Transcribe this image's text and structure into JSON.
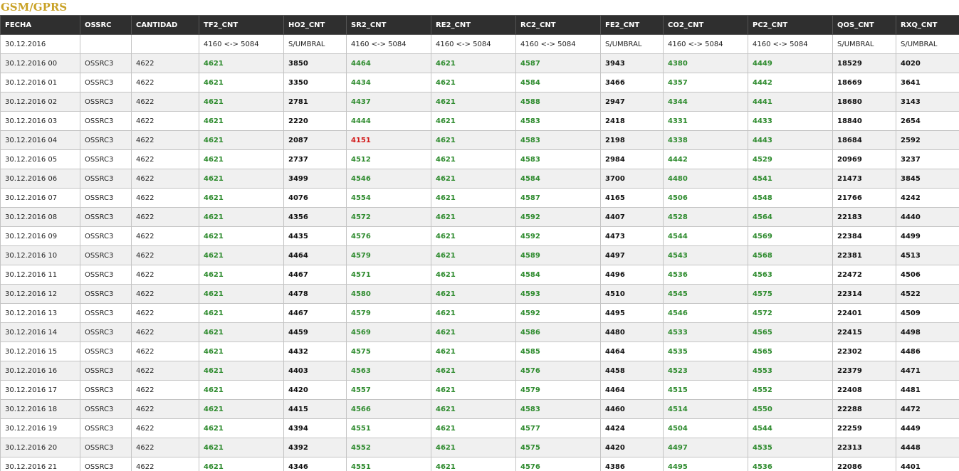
{
  "page": {
    "title": "GSM/GPRS"
  },
  "colors": {
    "title": "#c9a227",
    "header_bg": "#2f2f2f",
    "good": "#2e8b2e",
    "bad": "#d21a1a"
  },
  "table": {
    "columns": [
      "FECHA",
      "OSSRC",
      "CANTIDAD",
      "TF2_CNT",
      "HO2_CNT",
      "SR2_CNT",
      "RE2_CNT",
      "RC2_CNT",
      "FE2_CNT",
      "CO2_CNT",
      "PC2_CNT",
      "QOS_CNT",
      "RXQ_CNT"
    ],
    "threshold_row": [
      "30.12.2016",
      "",
      "",
      "4160 <-> 5084",
      "S/UMBRAL",
      "4160 <-> 5084",
      "4160 <-> 5084",
      "4160 <-> 5084",
      "S/UMBRAL",
      "4160 <-> 5084",
      "4160 <-> 5084",
      "S/UMBRAL",
      "S/UMBRAL"
    ],
    "rows": [
      [
        "30.12.2016 00",
        "OSSRC3",
        "4622",
        "4621",
        "3850",
        "4464",
        "4621",
        "4587",
        "3943",
        "4380",
        "4449",
        "18529",
        "4020"
      ],
      [
        "30.12.2016 01",
        "OSSRC3",
        "4622",
        "4621",
        "3350",
        "4434",
        "4621",
        "4584",
        "3466",
        "4357",
        "4442",
        "18669",
        "3641"
      ],
      [
        "30.12.2016 02",
        "OSSRC3",
        "4622",
        "4621",
        "2781",
        "4437",
        "4621",
        "4588",
        "2947",
        "4344",
        "4441",
        "18680",
        "3143"
      ],
      [
        "30.12.2016 03",
        "OSSRC3",
        "4622",
        "4621",
        "2220",
        "4444",
        "4621",
        "4583",
        "2418",
        "4331",
        "4433",
        "18840",
        "2654"
      ],
      [
        "30.12.2016 04",
        "OSSRC3",
        "4622",
        "4621",
        "2087",
        "4151",
        "4621",
        "4583",
        "2198",
        "4338",
        "4443",
        "18684",
        "2592"
      ],
      [
        "30.12.2016 05",
        "OSSRC3",
        "4622",
        "4621",
        "2737",
        "4512",
        "4621",
        "4583",
        "2984",
        "4442",
        "4529",
        "20969",
        "3237"
      ],
      [
        "30.12.2016 06",
        "OSSRC3",
        "4622",
        "4621",
        "3499",
        "4546",
        "4621",
        "4584",
        "3700",
        "4480",
        "4541",
        "21473",
        "3845"
      ],
      [
        "30.12.2016 07",
        "OSSRC3",
        "4622",
        "4621",
        "4076",
        "4554",
        "4621",
        "4587",
        "4165",
        "4506",
        "4548",
        "21766",
        "4242"
      ],
      [
        "30.12.2016 08",
        "OSSRC3",
        "4622",
        "4621",
        "4356",
        "4572",
        "4621",
        "4592",
        "4407",
        "4528",
        "4564",
        "22183",
        "4440"
      ],
      [
        "30.12.2016 09",
        "OSSRC3",
        "4622",
        "4621",
        "4435",
        "4576",
        "4621",
        "4592",
        "4473",
        "4544",
        "4569",
        "22384",
        "4499"
      ],
      [
        "30.12.2016 10",
        "OSSRC3",
        "4622",
        "4621",
        "4464",
        "4579",
        "4621",
        "4589",
        "4497",
        "4543",
        "4568",
        "22381",
        "4513"
      ],
      [
        "30.12.2016 11",
        "OSSRC3",
        "4622",
        "4621",
        "4467",
        "4571",
        "4621",
        "4584",
        "4496",
        "4536",
        "4563",
        "22472",
        "4506"
      ],
      [
        "30.12.2016 12",
        "OSSRC3",
        "4622",
        "4621",
        "4478",
        "4580",
        "4621",
        "4593",
        "4510",
        "4545",
        "4575",
        "22314",
        "4522"
      ],
      [
        "30.12.2016 13",
        "OSSRC3",
        "4622",
        "4621",
        "4467",
        "4579",
        "4621",
        "4592",
        "4495",
        "4546",
        "4572",
        "22401",
        "4509"
      ],
      [
        "30.12.2016 14",
        "OSSRC3",
        "4622",
        "4621",
        "4459",
        "4569",
        "4621",
        "4586",
        "4480",
        "4533",
        "4565",
        "22415",
        "4498"
      ],
      [
        "30.12.2016 15",
        "OSSRC3",
        "4622",
        "4621",
        "4432",
        "4575",
        "4621",
        "4585",
        "4464",
        "4535",
        "4565",
        "22302",
        "4486"
      ],
      [
        "30.12.2016 16",
        "OSSRC3",
        "4622",
        "4621",
        "4403",
        "4563",
        "4621",
        "4576",
        "4458",
        "4523",
        "4553",
        "22379",
        "4471"
      ],
      [
        "30.12.2016 17",
        "OSSRC3",
        "4622",
        "4621",
        "4420",
        "4557",
        "4621",
        "4579",
        "4464",
        "4515",
        "4552",
        "22408",
        "4481"
      ],
      [
        "30.12.2016 18",
        "OSSRC3",
        "4622",
        "4621",
        "4415",
        "4566",
        "4621",
        "4583",
        "4460",
        "4514",
        "4550",
        "22288",
        "4472"
      ],
      [
        "30.12.2016 19",
        "OSSRC3",
        "4622",
        "4621",
        "4394",
        "4551",
        "4621",
        "4577",
        "4424",
        "4504",
        "4544",
        "22259",
        "4449"
      ],
      [
        "30.12.2016 20",
        "OSSRC3",
        "4622",
        "4621",
        "4392",
        "4552",
        "4621",
        "4575",
        "4420",
        "4497",
        "4535",
        "22313",
        "4448"
      ],
      [
        "30.12.2016 21",
        "OSSRC3",
        "4622",
        "4621",
        "4346",
        "4551",
        "4621",
        "4576",
        "4386",
        "4495",
        "4536",
        "22086",
        "4401"
      ]
    ],
    "column_styles": [
      "plain",
      "plain",
      "plain",
      "good",
      "num",
      "good",
      "good",
      "good",
      "num",
      "good",
      "good",
      "num",
      "num"
    ],
    "cell_overrides": [
      {
        "row": 4,
        "col": 5,
        "style": "bad"
      }
    ]
  }
}
